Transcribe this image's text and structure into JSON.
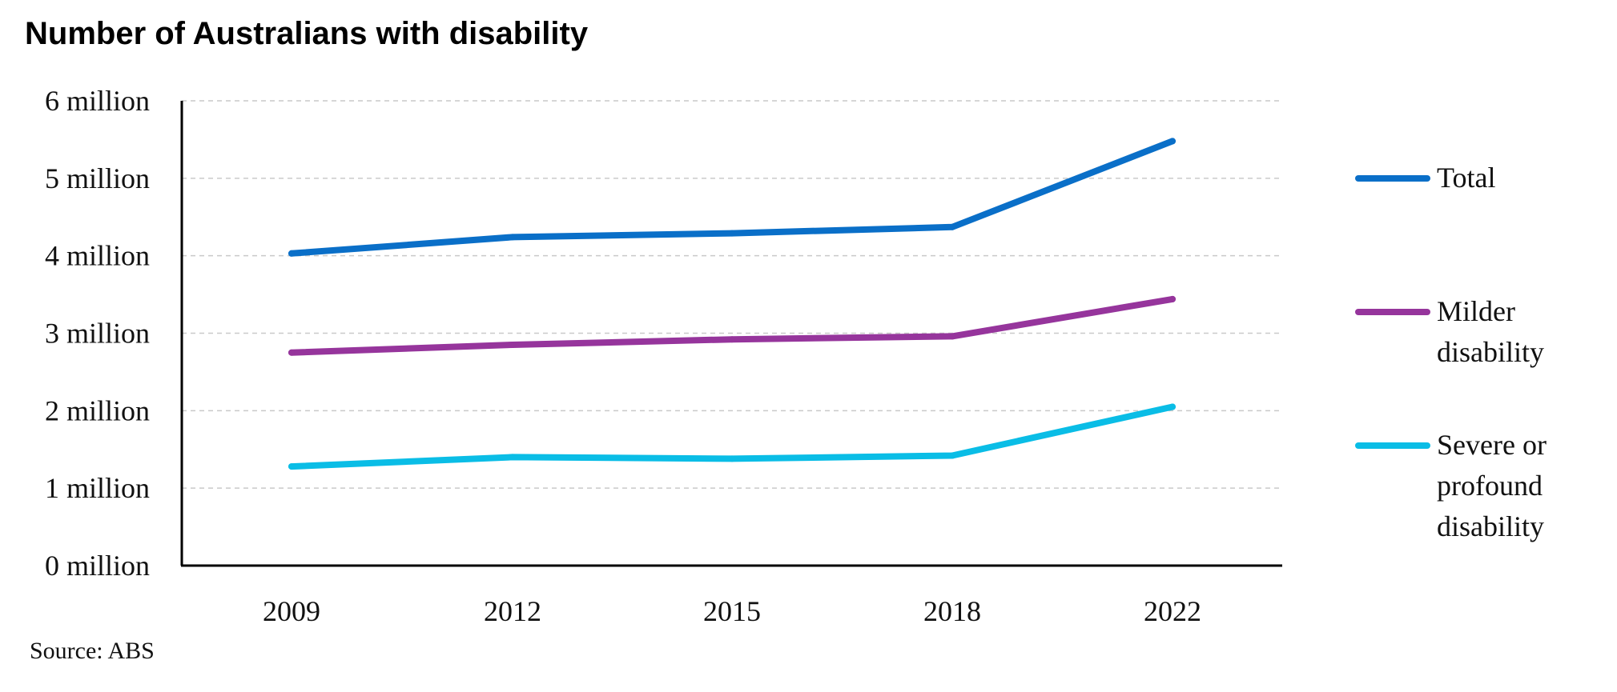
{
  "chart_data": {
    "type": "line",
    "title": "Number of Australians with disability",
    "categories": [
      "2009",
      "2012",
      "2015",
      "2018",
      "2022"
    ],
    "y_tick_labels": [
      "0 million",
      "1 million",
      "2 million",
      "3 million",
      "4 million",
      "5 million",
      "6 million"
    ],
    "ylim": [
      0,
      6
    ],
    "xlabel": "",
    "ylabel": "",
    "grid": "horizontal dashed",
    "legend_position": "right",
    "series": [
      {
        "name": "Total",
        "values": [
          4.03,
          4.24,
          4.29,
          4.37,
          5.48
        ],
        "color": "#0a6fc8"
      },
      {
        "name": "Milder disability",
        "values": [
          2.75,
          2.85,
          2.92,
          2.96,
          3.44
        ],
        "color": "#96359c"
      },
      {
        "name": "Severe or profound disability",
        "values": [
          1.28,
          1.4,
          1.38,
          1.42,
          2.05
        ],
        "color": "#0abde6"
      }
    ],
    "source": "Source: ABS"
  }
}
